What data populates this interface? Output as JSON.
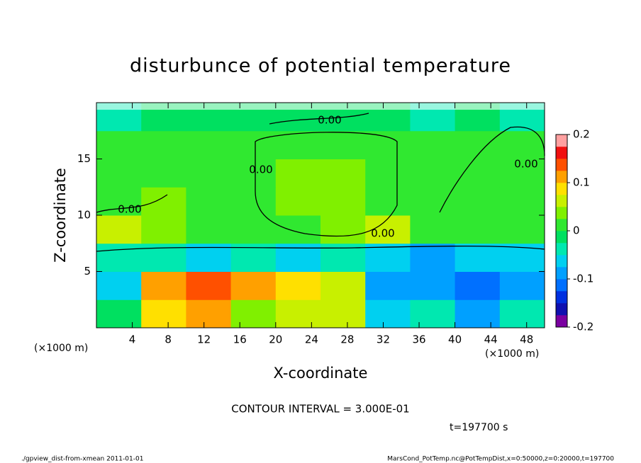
{
  "chart_data": {
    "type": "heatmap",
    "title": "disturbunce of potential temperature",
    "x_label": "X-coordinate",
    "y_label": "Z-coordinate",
    "x_unit": "(×1000 m)",
    "y_unit": "(×1000 m)",
    "xlim": [
      0,
      50
    ],
    "ylim": [
      0,
      20
    ],
    "xticks": [
      4,
      8,
      12,
      16,
      20,
      24,
      28,
      32,
      36,
      40,
      44,
      48
    ],
    "yticks": [
      5,
      10,
      15
    ],
    "field": {
      "x_edges": [
        0,
        5,
        10,
        15,
        20,
        25,
        30,
        35,
        40,
        45,
        50
      ],
      "z_edges": [
        0,
        2.5,
        5,
        7.5,
        10,
        12.5,
        15,
        17.5,
        20
      ],
      "values": [
        [
          -0.02,
          0.08,
          0.1,
          0.03,
          0.06,
          0.05,
          -0.06,
          -0.04,
          -0.08,
          -0.05
        ],
        [
          -0.06,
          0.12,
          0.14,
          0.1,
          0.09,
          0.06,
          -0.1,
          -0.08,
          -0.12,
          -0.1
        ],
        [
          -0.04,
          -0.05,
          -0.06,
          -0.05,
          -0.06,
          -0.05,
          -0.07,
          -0.08,
          -0.07,
          -0.06
        ],
        [
          0.06,
          0.03,
          0.02,
          0.02,
          0.02,
          0.03,
          0.05,
          0.02,
          0.0,
          0.02
        ],
        [
          0.02,
          0.03,
          0.01,
          0.01,
          0.03,
          0.03,
          0.01,
          0.01,
          0.0,
          0.01
        ],
        [
          0.01,
          0.0,
          0.01,
          0.01,
          0.03,
          0.03,
          0.01,
          0.0,
          0.01,
          0.01
        ],
        [
          0.0,
          0.0,
          0.01,
          0.01,
          0.02,
          0.02,
          0.01,
          0.0,
          0.01,
          0.02
        ],
        [
          -0.03,
          -0.02,
          -0.02,
          -0.02,
          -0.02,
          -0.01,
          -0.02,
          -0.03,
          -0.02,
          -0.03
        ]
      ]
    },
    "colorbar": {
      "levels": [
        -0.2,
        -0.175,
        -0.15,
        -0.125,
        -0.1,
        -0.075,
        -0.05,
        -0.025,
        0,
        0.025,
        0.05,
        0.075,
        0.1,
        0.125,
        0.15,
        0.175,
        0.2
      ],
      "colors": [
        "#7a00a0",
        "#1010b0",
        "#0030e0",
        "#0070ff",
        "#00a0ff",
        "#00d0f0",
        "#00e8b0",
        "#00e060",
        "#30e830",
        "#80f000",
        "#c8f000",
        "#ffe000",
        "#ffa000",
        "#ff5000",
        "#f01010",
        "#ffa0a0"
      ],
      "lim": [
        -0.2,
        0.2
      ],
      "ticks": [
        -0.2,
        -0.1,
        0,
        0.1,
        0.2
      ]
    },
    "contour_labels": [
      "0.00",
      "0.00",
      "0.00",
      "0.00",
      "0.00"
    ],
    "contour_interval": "CONTOUR INTERVAL = 3.000E-01",
    "time_label": "t=197700 s",
    "footer_left": "./gpview_dist-from-xmean  2011-01-01",
    "footer_right": "MarsCond_PotTemp.nc@PotTempDist,x=0:50000,z=0:20000,t=197700"
  }
}
